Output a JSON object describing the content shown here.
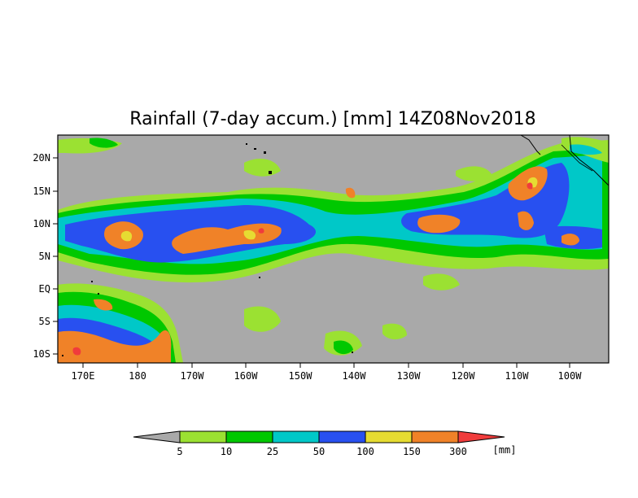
{
  "title": "Rainfall (7-day accum.) [mm] 14Z08Nov2018",
  "lat_labels": [
    "20N",
    "15N",
    "10N",
    "5N",
    "EQ",
    "5S",
    "10S"
  ],
  "lon_labels": [
    "170E",
    "180",
    "170W",
    "160W",
    "150W",
    "140W",
    "130W",
    "120W",
    "110W",
    "100W"
  ],
  "colorbar": {
    "levels": [
      "5",
      "10",
      "25",
      "50",
      "100",
      "150",
      "300"
    ],
    "unit": "[mm]",
    "colors": [
      "#a9a9a9",
      "#9be132",
      "#00c800",
      "#00c8c8",
      "#2850f0",
      "#e6dc32",
      "#f08228",
      "#f03c3c"
    ]
  },
  "colors": {
    "land_ocean_background": "#a9a9a9",
    "light_green": "#9be132",
    "green": "#00c800",
    "cyan": "#00c8c8",
    "blue": "#2850f0",
    "yellow": "#e6dc32",
    "orange": "#f08228",
    "red": "#f03c3c"
  }
}
